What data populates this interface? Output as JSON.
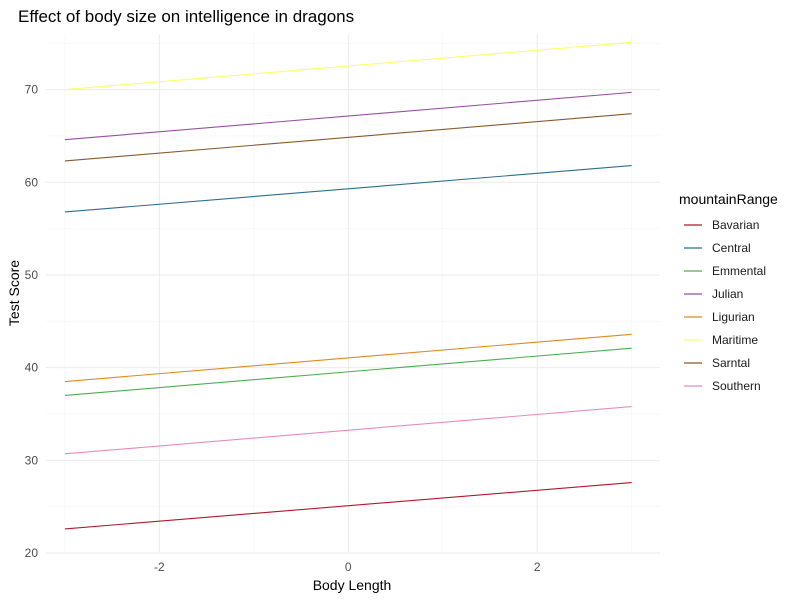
{
  "chart_data": {
    "type": "line",
    "title": "Effect of body size on intelligence in dragons",
    "xlabel": "Body Length",
    "ylabel": "Test Score",
    "xlim": [
      -3.2,
      3.3
    ],
    "ylim": [
      20,
      76
    ],
    "xticks": [
      -2,
      0,
      2
    ],
    "xtick_labels": [
      "-2",
      "0",
      "2"
    ],
    "yticks": [
      20,
      30,
      40,
      50,
      60,
      70
    ],
    "ytick_labels": [
      "20",
      "30",
      "40",
      "50",
      "60",
      "70"
    ],
    "grid": true,
    "legend_title": "mountainRange",
    "legend_position": "right",
    "series": [
      {
        "name": "Bavarian",
        "color": "#b2182b",
        "x": [
          -3,
          3
        ],
        "y": [
          22.6,
          27.6
        ]
      },
      {
        "name": "Central",
        "color": "#2c6d8e",
        "x": [
          -3,
          3
        ],
        "y": [
          56.8,
          61.8
        ]
      },
      {
        "name": "Emmental",
        "color": "#4daf4a",
        "x": [
          -3,
          3
        ],
        "y": [
          37.0,
          42.1
        ]
      },
      {
        "name": "Julian",
        "color": "#984ea3",
        "x": [
          -3,
          3
        ],
        "y": [
          64.6,
          69.7
        ]
      },
      {
        "name": "Ligurian",
        "color": "#e08a1e",
        "x": [
          -3,
          3
        ],
        "y": [
          38.5,
          43.6
        ]
      },
      {
        "name": "Maritime",
        "color": "#ffff66",
        "x": [
          -3,
          3
        ],
        "y": [
          70.0,
          75.1
        ]
      },
      {
        "name": "Sarntal",
        "color": "#8b5a2b",
        "x": [
          -3,
          3
        ],
        "y": [
          62.3,
          67.4
        ]
      },
      {
        "name": "Southern",
        "color": "#e78ac3",
        "x": [
          -3,
          3
        ],
        "y": [
          30.7,
          35.8
        ]
      }
    ]
  }
}
